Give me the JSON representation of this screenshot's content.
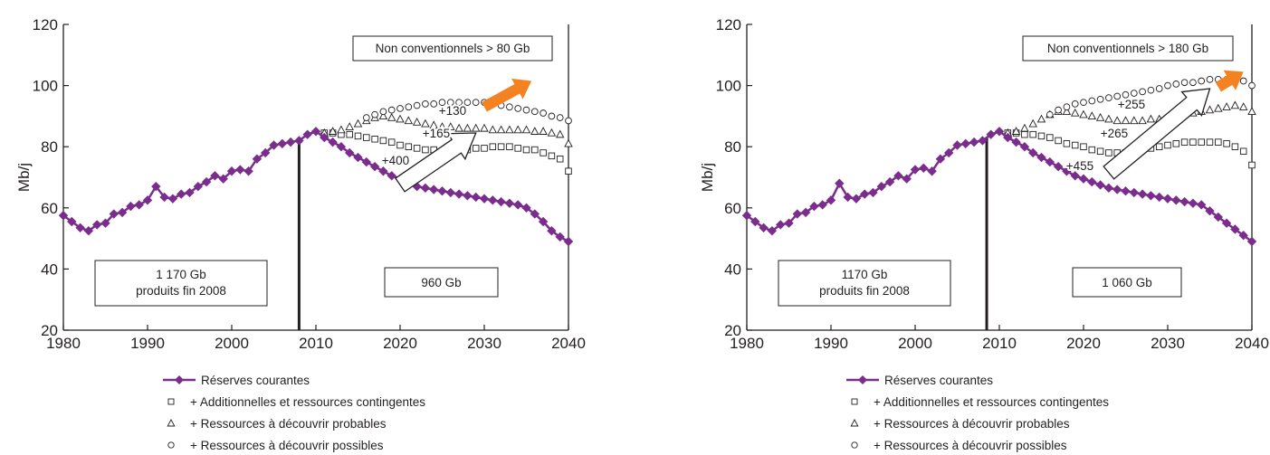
{
  "chart_data": [
    {
      "type": "line",
      "ylabel": "Mb/j",
      "xlim": [
        1980,
        2040
      ],
      "ylim": [
        20,
        120
      ],
      "xticks": [
        "1980",
        "1990",
        "2000",
        "2010",
        "2020",
        "2030",
        "2040"
      ],
      "yticks": [
        "20",
        "40",
        "60",
        "80",
        "100",
        "120"
      ],
      "grid": false,
      "legend_position": "bottom",
      "divider_year": 2008,
      "boxes": {
        "unconventional": "Non conventionnels > 80 Gb",
        "produced_line1": "1 170 Gb",
        "produced_line2": "produits fin 2008",
        "remaining": "960 Gb"
      },
      "annotations": [
        "+130",
        "+165",
        "+400"
      ],
      "series": [
        {
          "name": "Réserves courantes",
          "color": "#7b2d8e",
          "x": [
            1980,
            1981,
            1982,
            1983,
            1984,
            1985,
            1986,
            1987,
            1988,
            1989,
            1990,
            1991,
            1992,
            1993,
            1994,
            1995,
            1996,
            1997,
            1998,
            1999,
            2000,
            2001,
            2002,
            2003,
            2004,
            2005,
            2006,
            2007,
            2008,
            2009,
            2010,
            2011,
            2012,
            2013,
            2014,
            2015,
            2016,
            2017,
            2018,
            2019,
            2020,
            2021,
            2022,
            2023,
            2024,
            2025,
            2026,
            2027,
            2028,
            2029,
            2030,
            2031,
            2032,
            2033,
            2034,
            2035,
            2036,
            2037,
            2038,
            2039,
            2040
          ],
          "y": [
            57.5,
            55.5,
            53.5,
            52.5,
            54.5,
            55,
            58,
            58.5,
            60.5,
            61,
            62.5,
            67,
            63.5,
            63,
            64.5,
            65,
            67,
            68.5,
            70.5,
            69.5,
            72,
            72.5,
            72,
            76,
            78,
            80.5,
            81,
            81.5,
            82,
            84,
            85,
            83,
            81.5,
            80,
            78,
            76.5,
            75,
            73.5,
            72,
            70.5,
            69.5,
            68,
            67,
            66.5,
            66,
            65.5,
            65,
            64.5,
            64,
            63.5,
            63,
            62.5,
            62,
            61.5,
            61,
            60,
            58,
            55.5,
            52.5,
            50.5,
            49
          ]
        },
        {
          "name": "+ Additionnelles et ressources contingentes",
          "x": [
            2011,
            2012,
            2013,
            2014,
            2015,
            2016,
            2017,
            2018,
            2019,
            2020,
            2021,
            2022,
            2023,
            2024,
            2025,
            2026,
            2027,
            2028,
            2029,
            2030,
            2031,
            2032,
            2033,
            2034,
            2035,
            2036,
            2037,
            2038,
            2039,
            2040
          ],
          "y": [
            84.5,
            84.5,
            84,
            84,
            83.5,
            83,
            82.5,
            82,
            81.5,
            80.5,
            80,
            79.5,
            79,
            79,
            78.5,
            78.5,
            79,
            79,
            79.5,
            79.5,
            80,
            80,
            80,
            79.5,
            79,
            79,
            78,
            77,
            76,
            72
          ]
        },
        {
          "name": "+ Ressources à découvrir probables",
          "x": [
            2011,
            2012,
            2013,
            2014,
            2015,
            2016,
            2017,
            2018,
            2019,
            2020,
            2021,
            2022,
            2023,
            2024,
            2025,
            2026,
            2027,
            2028,
            2029,
            2030,
            2031,
            2032,
            2033,
            2034,
            2035,
            2036,
            2037,
            2038,
            2039,
            2040
          ],
          "y": [
            84.5,
            85,
            85.5,
            86.5,
            87.5,
            88.5,
            89.5,
            90,
            89.5,
            89,
            88.5,
            88,
            87.5,
            87,
            86.5,
            86.5,
            86,
            86,
            86,
            86,
            85.5,
            85.5,
            85.5,
            85.5,
            85.5,
            85,
            85,
            84.5,
            84,
            81
          ]
        },
        {
          "name": "+ Ressources à découvrir possibles",
          "x": [
            2016,
            2017,
            2018,
            2019,
            2020,
            2021,
            2022,
            2023,
            2024,
            2025,
            2026,
            2027,
            2028,
            2029,
            2030,
            2031,
            2032,
            2033,
            2034,
            2035,
            2036,
            2037,
            2038,
            2039,
            2040
          ],
          "y": [
            89.5,
            90.5,
            91.5,
            92,
            92.5,
            93,
            93.5,
            94,
            94,
            94.5,
            94.5,
            94.5,
            94.5,
            94.5,
            94.5,
            94,
            93.5,
            93,
            92.5,
            92,
            91.5,
            91,
            90,
            89.5,
            88.5
          ]
        }
      ]
    },
    {
      "type": "line",
      "ylabel": "Mb/j",
      "xlim": [
        1980,
        2040
      ],
      "ylim": [
        20,
        120
      ],
      "xticks": [
        "1980",
        "1990",
        "2000",
        "2010",
        "2020",
        "2030",
        "2040"
      ],
      "yticks": [
        "20",
        "40",
        "60",
        "80",
        "100",
        "120"
      ],
      "grid": false,
      "legend_position": "bottom",
      "divider_year": 2008.5,
      "boxes": {
        "unconventional": "Non conventionnels > 180 Gb",
        "produced_line1": "1170 Gb",
        "produced_line2": "produits fin 2008",
        "remaining": "1 060 Gb"
      },
      "annotations": [
        "+255",
        "+265",
        "+455"
      ],
      "series": [
        {
          "name": "Réserves courantes",
          "color": "#7b2d8e",
          "x": [
            1980,
            1981,
            1982,
            1983,
            1984,
            1985,
            1986,
            1987,
            1988,
            1989,
            1990,
            1991,
            1992,
            1993,
            1994,
            1995,
            1996,
            1997,
            1998,
            1999,
            2000,
            2001,
            2002,
            2003,
            2004,
            2005,
            2006,
            2007,
            2008,
            2009,
            2010,
            2011,
            2012,
            2013,
            2014,
            2015,
            2016,
            2017,
            2018,
            2019,
            2020,
            2021,
            2022,
            2023,
            2024,
            2025,
            2026,
            2027,
            2028,
            2029,
            2030,
            2031,
            2032,
            2033,
            2034,
            2035,
            2036,
            2037,
            2038,
            2039,
            2040
          ],
          "y": [
            57.5,
            55.5,
            53.5,
            52.5,
            54.5,
            55,
            58,
            58.5,
            60.5,
            61,
            62.5,
            68,
            63.5,
            63,
            64.5,
            65,
            67,
            68.5,
            70.5,
            69.5,
            72.5,
            73,
            72,
            76,
            78,
            80.5,
            81,
            81.5,
            82,
            84,
            85,
            83,
            81.5,
            80,
            78,
            76.5,
            75,
            73.5,
            72,
            70.5,
            69.5,
            68.5,
            67.5,
            66.5,
            66,
            65.5,
            65,
            64.5,
            64,
            63.5,
            63,
            62.5,
            62,
            61.5,
            61,
            59,
            57,
            55,
            53,
            51,
            49
          ]
        },
        {
          "name": "+ Additionnelles et ressources contingentes",
          "x": [
            2011,
            2012,
            2013,
            2014,
            2015,
            2016,
            2017,
            2018,
            2019,
            2020,
            2021,
            2022,
            2023,
            2024,
            2025,
            2026,
            2027,
            2028,
            2029,
            2030,
            2031,
            2032,
            2033,
            2034,
            2035,
            2036,
            2037,
            2038,
            2039,
            2040
          ],
          "y": [
            84.5,
            84.5,
            84,
            84,
            83.5,
            83,
            82,
            81,
            80.5,
            80,
            79,
            78.5,
            78,
            78,
            78,
            78.5,
            79,
            79.5,
            80,
            80.5,
            81,
            81.5,
            81.5,
            81.5,
            81.5,
            81.5,
            81,
            80,
            78.5,
            74
          ]
        },
        {
          "name": "+ Ressources à découvrir probables",
          "x": [
            2011,
            2012,
            2013,
            2014,
            2015,
            2016,
            2017,
            2018,
            2019,
            2020,
            2021,
            2022,
            2023,
            2024,
            2025,
            2026,
            2027,
            2028,
            2029,
            2030,
            2031,
            2032,
            2033,
            2034,
            2035,
            2036,
            2037,
            2038,
            2039,
            2040
          ],
          "y": [
            84.5,
            85,
            86,
            87.5,
            89,
            90.5,
            91.5,
            91.5,
            91,
            90.5,
            90,
            89.5,
            89,
            88.5,
            88.5,
            88.5,
            88.5,
            89,
            89,
            89.5,
            90,
            90.5,
            91,
            91.5,
            92,
            92.5,
            93,
            93.5,
            93,
            91.5
          ]
        },
        {
          "name": "+ Ressources à découvrir possibles",
          "x": [
            2016,
            2017,
            2018,
            2019,
            2020,
            2021,
            2022,
            2023,
            2024,
            2025,
            2026,
            2027,
            2028,
            2029,
            2030,
            2031,
            2032,
            2033,
            2034,
            2035,
            2036,
            2037,
            2038,
            2039,
            2040
          ],
          "y": [
            90.5,
            92,
            93,
            94,
            94.5,
            95,
            95.5,
            96,
            96.5,
            97,
            97.5,
            98,
            98.5,
            99,
            100,
            100.5,
            101,
            101,
            101.5,
            102,
            102,
            102,
            102,
            101.5,
            100
          ]
        }
      ]
    }
  ]
}
